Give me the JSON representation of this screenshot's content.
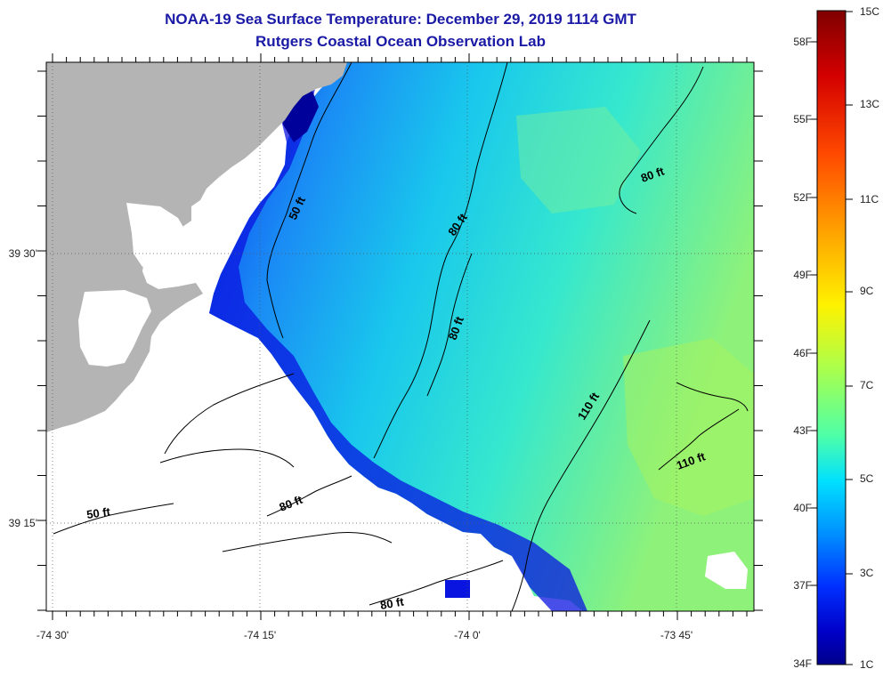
{
  "title": "NOAA-19 Sea Surface Temperature:  December 29, 2019 1114 GMT",
  "subtitle": "Rutgers Coastal Ocean Observation Lab",
  "axes": {
    "lon_labels": [
      "-74 30'",
      "-74 15'",
      "-74 0'",
      "-73 45'"
    ],
    "lat_labels": [
      "39 30'",
      "39 15'"
    ]
  },
  "contour_labels": {
    "c50_top": "50 ft",
    "c80_a": "80 ft",
    "c80_b": "80 ft",
    "c80_c": "80 ft",
    "c80_d": "80 ft",
    "c80_e": "80 ft",
    "c110_a": "110 ft",
    "c110_b": "110 ft",
    "c50_bottom": "50 ft"
  },
  "colorbar": {
    "celsius": [
      "15C",
      "13C",
      "11C",
      "9C",
      "7C",
      "5C",
      "3C",
      "1C"
    ],
    "fahrenheit": [
      "58F",
      "55F",
      "52F",
      "49F",
      "46F",
      "43F",
      "40F",
      "37F",
      "34F"
    ],
    "colors": [
      "#7f0000",
      "#d40000",
      "#ff4a00",
      "#ffab00",
      "#fff200",
      "#a8ff4e",
      "#4effa8",
      "#00e0ff",
      "#0090ff",
      "#0030ff",
      "#0000c8",
      "#00008a"
    ]
  },
  "colors": {
    "land": "#b4b4b4",
    "nodata": "#ffffff",
    "title": "#1a1aa6"
  }
}
